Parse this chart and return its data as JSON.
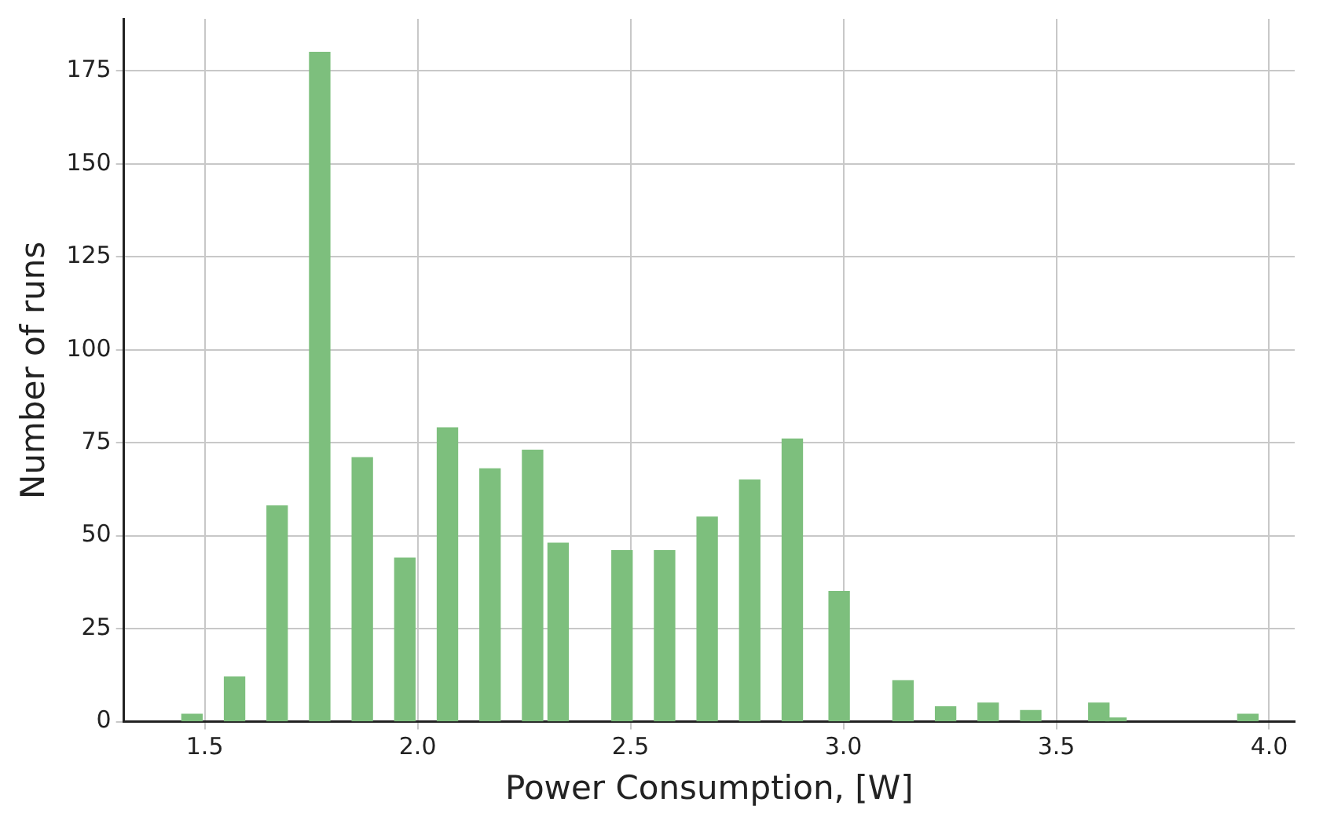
{
  "chart_data": {
    "type": "bar",
    "xlabel": "Power Consumption, [W]",
    "ylabel": "Number of runs",
    "x": [
      1.47,
      1.57,
      1.67,
      1.77,
      1.87,
      1.97,
      2.07,
      2.17,
      2.27,
      2.33,
      2.48,
      2.58,
      2.68,
      2.78,
      2.88,
      2.99,
      3.14,
      3.24,
      3.34,
      3.44,
      3.6,
      3.64,
      3.95
    ],
    "series": [
      {
        "color": "#7dbf7d",
        "values": [
          2,
          12,
          58,
          180,
          71,
          44,
          79,
          68,
          73,
          48,
          46,
          46,
          55,
          65,
          76,
          35,
          11,
          4,
          5,
          3,
          5,
          1,
          2
        ]
      }
    ],
    "xlim": [
      1.31,
      4.06
    ],
    "xticks": [
      1.5,
      {
        "value": 2,
        "label": "2.0"
      },
      2.5,
      {
        "value": 3,
        "label": "3.0"
      },
      3.5,
      {
        "value": 4,
        "label": "4.0"
      }
    ],
    "ylim": [
      0,
      189
    ],
    "yticks": [
      0,
      25,
      50,
      75,
      100,
      125,
      150,
      175
    ],
    "grid": true,
    "legend": false
  }
}
